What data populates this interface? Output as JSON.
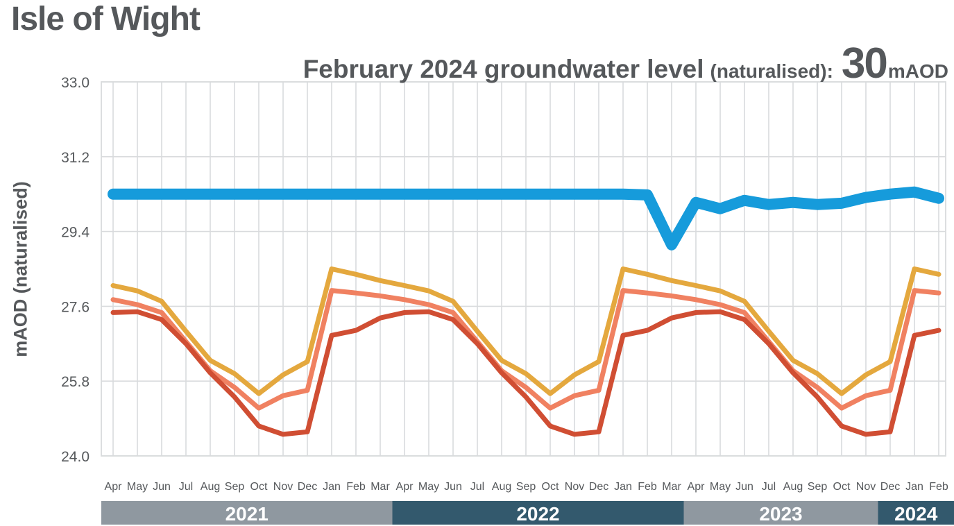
{
  "header": {
    "title": "Isle of Wight",
    "subtitle_prefix": "February 2024 groundwater level",
    "subtitle_qualifier": "(naturalised):",
    "subtitle_value": "30",
    "subtitle_unit": "mAOD"
  },
  "colors": {
    "text": "#55585B",
    "grid": "#D9DBDD",
    "band_gray": "#8F98A0",
    "band_teal": "#33596D",
    "line_blue": "#169BDB",
    "line_gold": "#E4A83E",
    "line_salmon": "#F08161",
    "line_red": "#D04E33"
  },
  "chart_data": {
    "type": "line",
    "title": "February 2024 groundwater level (naturalised): 30 mAOD",
    "xlabel": "",
    "ylabel": "mAOD (naturalised)",
    "ylim": [
      24.0,
      33.0
    ],
    "grid": true,
    "legend_position": "none",
    "y_ticks": [
      {
        "value": 33.0,
        "label": "33.0"
      },
      {
        "value": 31.2,
        "label": "31.2"
      },
      {
        "value": 29.4,
        "label": "29.4"
      },
      {
        "value": 27.6,
        "label": "27.6"
      },
      {
        "value": 25.8,
        "label": "25.8"
      },
      {
        "value": 24.0,
        "label": "24.0"
      }
    ],
    "x": [
      "Apr",
      "May",
      "Jun",
      "Jul",
      "Aug",
      "Sep",
      "Oct",
      "Nov",
      "Dec",
      "Jan",
      "Feb",
      "Mar",
      "Apr",
      "May",
      "Jun",
      "Jul",
      "Aug",
      "Sep",
      "Oct",
      "Nov",
      "Dec",
      "Jan",
      "Feb",
      "Mar",
      "Apr",
      "May",
      "Jun",
      "Jul",
      "Aug",
      "Sep",
      "Oct",
      "Nov",
      "Dec",
      "Jan",
      "Feb"
    ],
    "year_bands": [
      {
        "label": "2021",
        "from_month_index": 0,
        "to_month_index": 11,
        "color": "#8F98A0"
      },
      {
        "label": "2022",
        "from_month_index": 12,
        "to_month_index": 23,
        "color": "#33596D"
      },
      {
        "label": "2023",
        "from_month_index": 24,
        "to_month_index": 31,
        "color": "#8F98A0"
      },
      {
        "label": "2024",
        "from_month_index": 32,
        "to_month_index": 34,
        "color": "#33596D"
      }
    ],
    "series": [
      {
        "id": "seasonal-upper-gold",
        "color": "#E4A83E",
        "stroke_width": 7,
        "values": [
          28.1,
          27.97,
          27.72,
          27.0,
          26.3,
          25.98,
          25.5,
          25.95,
          26.27,
          28.5,
          28.37,
          28.22,
          28.1,
          27.97,
          27.72,
          27.0,
          26.3,
          25.98,
          25.5,
          25.95,
          26.27,
          28.5,
          28.37,
          28.22,
          28.1,
          27.97,
          27.72,
          27.0,
          26.3,
          25.98,
          25.5,
          25.95,
          26.27,
          28.5,
          28.37
        ]
      },
      {
        "id": "seasonal-middle-salmon",
        "color": "#F08161",
        "stroke_width": 7,
        "values": [
          27.76,
          27.64,
          27.45,
          26.75,
          26.05,
          25.65,
          25.15,
          25.45,
          25.58,
          27.98,
          27.92,
          27.85,
          27.76,
          27.64,
          27.45,
          26.75,
          26.05,
          25.65,
          25.15,
          25.45,
          25.58,
          27.98,
          27.92,
          27.85,
          27.76,
          27.64,
          27.45,
          26.75,
          26.05,
          25.65,
          25.15,
          25.45,
          25.58,
          27.98,
          27.92
        ]
      },
      {
        "id": "seasonal-lower-red",
        "color": "#D04E33",
        "stroke_width": 7,
        "values": [
          27.45,
          27.47,
          27.28,
          26.7,
          26.0,
          25.42,
          24.72,
          24.52,
          24.58,
          26.9,
          27.02,
          27.32,
          27.45,
          27.47,
          27.28,
          26.7,
          26.0,
          25.42,
          24.72,
          24.52,
          24.58,
          26.9,
          27.02,
          27.32,
          27.45,
          27.47,
          27.28,
          26.7,
          26.0,
          25.42,
          24.72,
          24.52,
          24.58,
          26.9,
          27.02
        ]
      },
      {
        "id": "groundwater-level-blue",
        "color": "#169BDB",
        "stroke_width": 16,
        "values": [
          30.3,
          30.3,
          30.3,
          30.3,
          30.3,
          30.3,
          30.3,
          30.3,
          30.3,
          30.3,
          30.3,
          30.3,
          30.3,
          30.3,
          30.3,
          30.3,
          30.3,
          30.3,
          30.3,
          30.3,
          30.3,
          30.3,
          30.28,
          29.08,
          30.1,
          29.95,
          30.15,
          30.05,
          30.1,
          30.05,
          30.08,
          30.22,
          30.3,
          30.35,
          30.2
        ]
      }
    ]
  }
}
